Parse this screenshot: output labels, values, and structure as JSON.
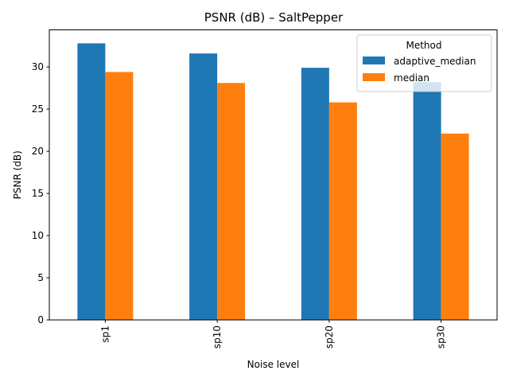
{
  "chart_data": {
    "type": "bar",
    "title": "PSNR (dB) – SaltPepper",
    "xlabel": "Noise level",
    "ylabel": "PSNR (dB)",
    "categories": [
      "sp1",
      "sp10",
      "sp20",
      "sp30"
    ],
    "series": [
      {
        "name": "adaptive_median",
        "values": [
          32.8,
          31.6,
          29.9,
          28.2
        ],
        "color": "#1f77b4"
      },
      {
        "name": "median",
        "values": [
          29.4,
          28.1,
          25.8,
          22.1
        ],
        "color": "#ff7f0e"
      }
    ],
    "ylim": [
      0,
      34.4
    ],
    "yticks": [
      0,
      5,
      10,
      15,
      20,
      25,
      30
    ],
    "grid": false,
    "legend": {
      "title": "Method",
      "placement": "top-right"
    }
  }
}
